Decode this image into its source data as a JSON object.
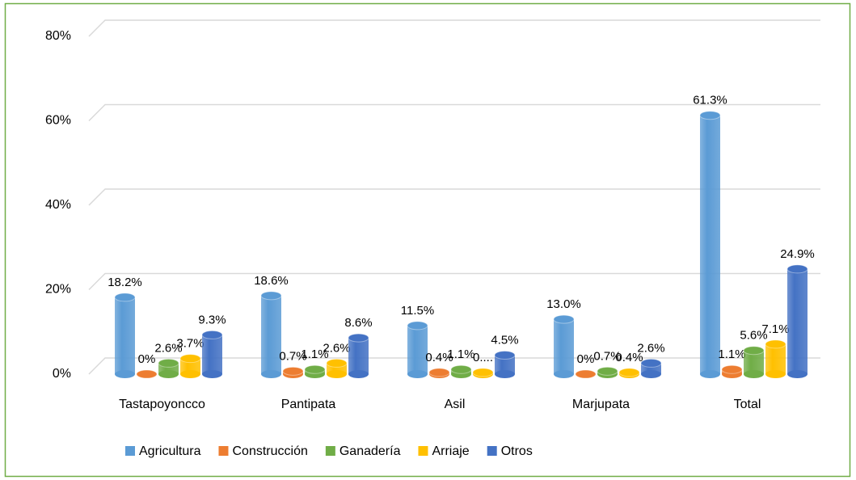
{
  "chart_data": {
    "type": "bar",
    "categories": [
      "Tastapoyoncco",
      "Pantipata",
      "Asil",
      "Marjupata",
      "Total"
    ],
    "series": [
      {
        "name": "Agricultura",
        "color": "#5b9bd5",
        "values": [
          18.2,
          18.6,
          11.5,
          13.0,
          61.3
        ],
        "value_labels": [
          "18.2%",
          "18.6%",
          "11.5%",
          "13.0%",
          "61.3%"
        ]
      },
      {
        "name": "Construcción",
        "color": "#ed7d31",
        "values": [
          0,
          0.7,
          0.4,
          0,
          1.1
        ],
        "value_labels": [
          "0%",
          "0.7%",
          "0.4%",
          "0%",
          "1.1%"
        ]
      },
      {
        "name": "Ganadería",
        "color": "#70ad47",
        "values": [
          2.6,
          1.1,
          1.1,
          0.7,
          5.6
        ],
        "value_labels": [
          "2.6%",
          "1.1%",
          "1.1%",
          "0.7%",
          "5.6%"
        ]
      },
      {
        "name": "Arriaje",
        "color": "#ffc000",
        "values": [
          3.7,
          2.6,
          0.4,
          0.4,
          7.1
        ],
        "value_labels": [
          "3.7%",
          "2.6%",
          "0....",
          "0.4%",
          "7.1%"
        ]
      },
      {
        "name": "Otros",
        "color": "#4472c4",
        "values": [
          9.3,
          8.6,
          4.5,
          2.6,
          24.9
        ],
        "value_labels": [
          "9.3%",
          "8.6%",
          "4.5%",
          "2.6%",
          "24.9%"
        ]
      }
    ],
    "ylim": [
      0,
      80
    ],
    "yticks": [
      {
        "value": 0,
        "label": "0%"
      },
      {
        "value": 20,
        "label": "20%"
      },
      {
        "value": 40,
        "label": "40%"
      },
      {
        "value": 60,
        "label": "60%"
      },
      {
        "value": 80,
        "label": "80%"
      }
    ],
    "grid": true,
    "legend": "bottom"
  }
}
